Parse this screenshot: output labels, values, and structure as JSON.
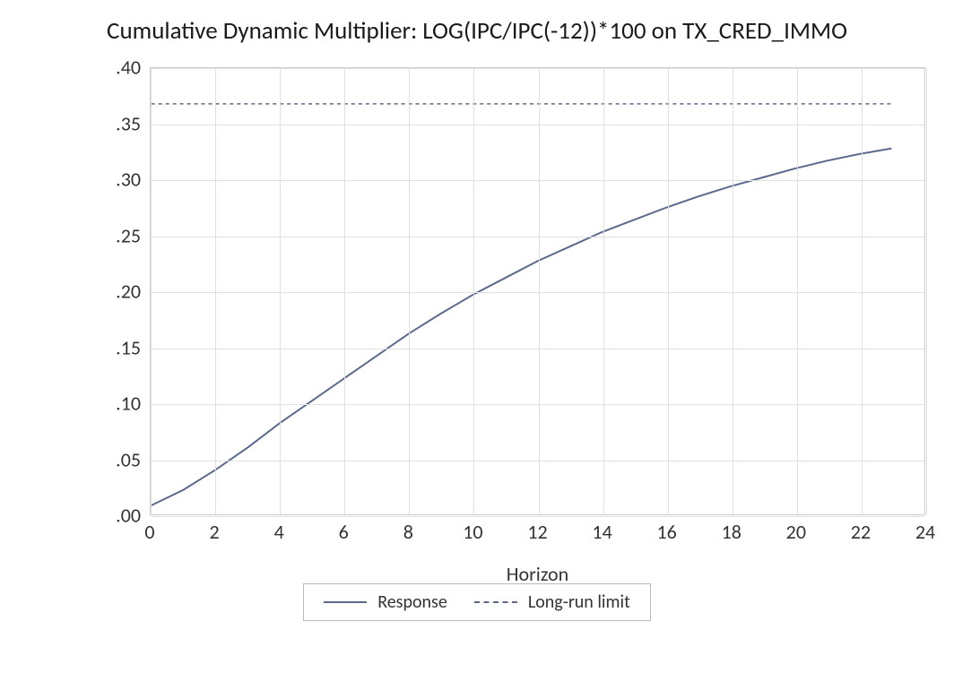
{
  "chart": {
    "type": "line",
    "title": "Cumulative Dynamic Multiplier: LOG(IPC/IPC(-12))*100 on TX_CRED_IMMO",
    "title_fontsize": 27,
    "x_axis_title": "Horizon",
    "axis_fontsize": 22,
    "background_color": "#ffffff",
    "grid_color": "#e0e0e0",
    "border_color": "#cccccc",
    "text_color": "#333333",
    "xlim": [
      0,
      24
    ],
    "xtick_step": 2,
    "xticks": [
      0,
      2,
      4,
      6,
      8,
      10,
      12,
      14,
      16,
      18,
      20,
      22,
      24
    ],
    "ylim": [
      0.0,
      0.4
    ],
    "ytick_step": 0.05,
    "yticks": [
      ".00",
      ".05",
      ".10",
      ".15",
      ".20",
      ".25",
      ".30",
      ".35",
      ".40"
    ],
    "series": {
      "response": {
        "label": "Response",
        "color": "#5b6a8c",
        "line_width": 2,
        "dash": "solid",
        "x": [
          0,
          1,
          2,
          3,
          4,
          5,
          6,
          7,
          8,
          9,
          10,
          11,
          12,
          13,
          14,
          15,
          16,
          17,
          18,
          19,
          20,
          21,
          22,
          23
        ],
        "y": [
          0.008,
          0.022,
          0.04,
          0.06,
          0.082,
          0.102,
          0.122,
          0.142,
          0.162,
          0.18,
          0.197,
          0.212,
          0.227,
          0.24,
          0.253,
          0.264,
          0.275,
          0.285,
          0.294,
          0.302,
          0.31,
          0.317,
          0.323,
          0.328
        ]
      },
      "longrun": {
        "label": "Long-run limit",
        "color": "#5b6a8c",
        "line_width": 1.5,
        "dash": "4,4",
        "value": 0.368
      }
    },
    "legend": {
      "items": [
        "response",
        "longrun"
      ],
      "border_color": "#bbbbbb",
      "fontsize": 20
    }
  }
}
